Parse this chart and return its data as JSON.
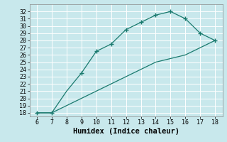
{
  "upper_x": [
    6,
    7,
    8,
    9,
    10,
    11,
    12,
    13,
    14,
    15,
    16,
    17,
    18
  ],
  "upper_y": [
    18,
    18,
    21,
    23.5,
    26.5,
    27.5,
    29.5,
    30.5,
    31.5,
    32,
    31,
    29,
    28
  ],
  "upper_marker_x": [
    6,
    7,
    9,
    10,
    11,
    12,
    13,
    14,
    15,
    16,
    17,
    18
  ],
  "upper_marker_y": [
    18,
    18,
    23.5,
    26.5,
    27.5,
    29.5,
    30.5,
    31.5,
    32,
    31,
    29,
    28
  ],
  "lower_x": [
    6,
    7,
    8,
    9,
    10,
    11,
    12,
    13,
    14,
    15,
    16,
    17,
    18
  ],
  "lower_y": [
    18,
    18,
    19,
    20,
    21,
    22,
    23,
    24,
    25,
    25.5,
    26,
    27,
    28
  ],
  "line_color": "#1a7a6e",
  "bg_color": "#c8e8ec",
  "grid_color": "#ffffff",
  "xlabel": "Humidex (Indice chaleur)",
  "xlim": [
    5.5,
    18.5
  ],
  "ylim": [
    17.5,
    33
  ],
  "xticks": [
    6,
    7,
    8,
    9,
    10,
    11,
    12,
    13,
    14,
    15,
    16,
    17,
    18
  ],
  "yticks": [
    18,
    19,
    20,
    21,
    22,
    23,
    24,
    25,
    26,
    27,
    28,
    29,
    30,
    31,
    32
  ],
  "tick_fontsize": 6,
  "xlabel_fontsize": 7.5,
  "marker": "+",
  "marker_size": 4,
  "line_width": 0.9
}
